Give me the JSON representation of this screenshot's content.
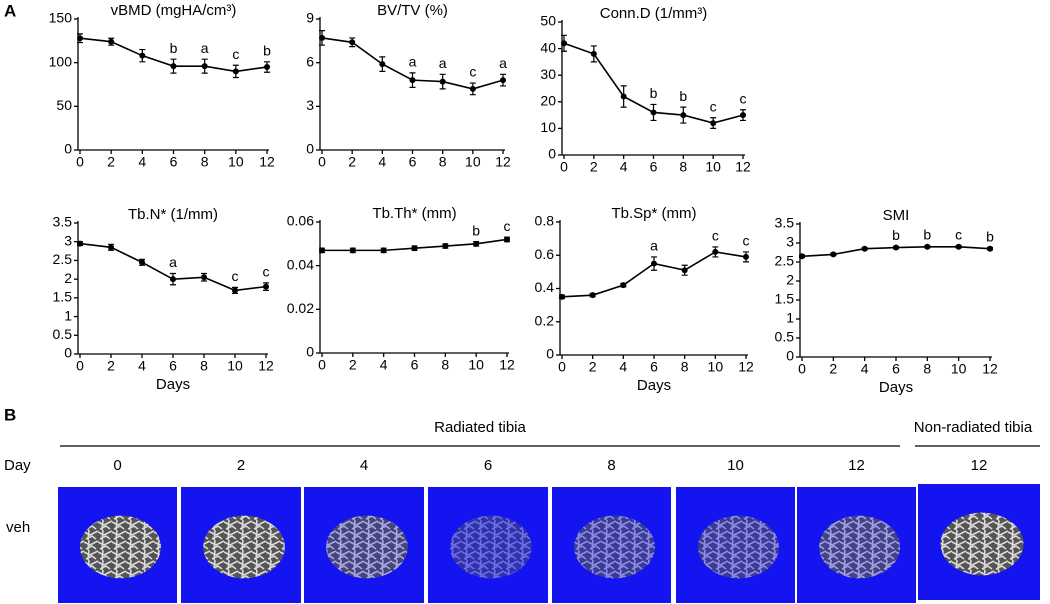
{
  "panel_labels": [
    "A",
    "B"
  ],
  "chart_data": [
    {
      "type": "line",
      "title": "vBMD (mgHA/cm³)",
      "x": [
        0,
        2,
        4,
        6,
        8,
        10,
        12
      ],
      "xlim": [
        0,
        12
      ],
      "xticks": [
        0,
        2,
        4,
        6,
        8,
        10,
        12
      ],
      "ylim": [
        0,
        150
      ],
      "yticks": [
        0,
        50,
        100,
        150
      ],
      "series": [
        {
          "color": "#000000",
          "values": [
            128,
            124,
            108,
            96,
            96,
            90,
            95
          ],
          "errors": [
            5,
            4,
            7,
            8,
            8,
            7,
            6
          ],
          "annotations": [
            null,
            null,
            null,
            "b",
            "a",
            "c",
            "b"
          ]
        }
      ]
    },
    {
      "type": "line",
      "title": "BV/TV (%)",
      "x": [
        0,
        2,
        4,
        6,
        8,
        10,
        12
      ],
      "xlim": [
        0,
        12
      ],
      "xticks": [
        0,
        2,
        4,
        6,
        8,
        10,
        12
      ],
      "ylim": [
        0,
        9
      ],
      "yticks": [
        0,
        3,
        6,
        9
      ],
      "series": [
        {
          "color": "#000000",
          "values": [
            7.7,
            7.4,
            5.9,
            4.8,
            4.7,
            4.2,
            4.8
          ],
          "errors": [
            0.5,
            0.3,
            0.5,
            0.5,
            0.5,
            0.4,
            0.4
          ],
          "annotations": [
            null,
            null,
            null,
            "a",
            "a",
            "c",
            "a"
          ]
        }
      ]
    },
    {
      "type": "line",
      "title": "Conn.D (1/mm³)",
      "x": [
        0,
        2,
        4,
        6,
        8,
        10,
        12
      ],
      "xlim": [
        0,
        12
      ],
      "xticks": [
        0,
        2,
        4,
        6,
        8,
        10,
        12
      ],
      "ylim": [
        0,
        50
      ],
      "yticks": [
        0,
        10,
        20,
        30,
        40,
        50
      ],
      "series": [
        {
          "color": "#000000",
          "values": [
            42,
            38,
            22,
            16,
            15,
            12,
            15
          ],
          "errors": [
            3,
            3,
            4,
            3,
            3,
            2,
            2
          ],
          "annotations": [
            null,
            null,
            null,
            "b",
            "b",
            "c",
            "c"
          ]
        }
      ]
    },
    {
      "type": "line",
      "title": "Tb.N* (1/mm)",
      "x_label": "Days",
      "x": [
        0,
        2,
        4,
        6,
        8,
        10,
        12
      ],
      "xlim": [
        0,
        12
      ],
      "xticks": [
        0,
        2,
        4,
        6,
        8,
        10,
        12
      ],
      "ylim": [
        0,
        3.5
      ],
      "yticks": [
        0,
        0.5,
        1,
        1.5,
        2,
        2.5,
        3,
        3.5
      ],
      "series": [
        {
          "color": "#000000",
          "values": [
            2.95,
            2.85,
            2.45,
            2.0,
            2.05,
            1.7,
            1.8
          ],
          "errors": [
            0.05,
            0.08,
            0.08,
            0.15,
            0.1,
            0.08,
            0.1
          ],
          "annotations": [
            null,
            null,
            null,
            "a",
            null,
            "c",
            "c"
          ]
        }
      ]
    },
    {
      "type": "line",
      "title": "Tb.Th* (mm)",
      "x": [
        0,
        2,
        4,
        6,
        8,
        10,
        12
      ],
      "xlim": [
        0,
        12
      ],
      "xticks": [
        0,
        2,
        4,
        6,
        8,
        10,
        12
      ],
      "ylim": [
        0,
        0.06
      ],
      "yticks": [
        0,
        0.02,
        0.04,
        0.06
      ],
      "series": [
        {
          "color": "#000000",
          "values": [
            0.047,
            0.047,
            0.047,
            0.048,
            0.049,
            0.05,
            0.052
          ],
          "errors": [
            0.001,
            0.001,
            0.001,
            0.001,
            0.001,
            0.001,
            0.001
          ],
          "annotations": [
            null,
            null,
            null,
            null,
            null,
            "b",
            "c"
          ]
        }
      ]
    },
    {
      "type": "line",
      "title": "Tb.Sp* (mm)",
      "x_label": "Days",
      "x": [
        0,
        2,
        4,
        6,
        8,
        10,
        12
      ],
      "xlim": [
        0,
        12
      ],
      "xticks": [
        0,
        2,
        4,
        6,
        8,
        10,
        12
      ],
      "ylim": [
        0,
        0.8
      ],
      "yticks": [
        0,
        0.2,
        0.4,
        0.6,
        0.8
      ],
      "series": [
        {
          "color": "#000000",
          "values": [
            0.35,
            0.36,
            0.42,
            0.55,
            0.51,
            0.62,
            0.59
          ],
          "errors": [
            0.01,
            0.01,
            0.01,
            0.04,
            0.03,
            0.03,
            0.03
          ],
          "annotations": [
            null,
            null,
            null,
            "a",
            null,
            "c",
            "c"
          ]
        }
      ]
    },
    {
      "type": "line",
      "title": "SMI",
      "x_label": "Days",
      "x": [
        0,
        2,
        4,
        6,
        8,
        10,
        12
      ],
      "xlim": [
        0,
        12
      ],
      "xticks": [
        0,
        2,
        4,
        6,
        8,
        10,
        12
      ],
      "ylim": [
        0,
        3.5
      ],
      "yticks": [
        0,
        0.5,
        1,
        1.5,
        2,
        2.5,
        3,
        3.5
      ],
      "series": [
        {
          "color": "#000000",
          "values": [
            2.65,
            2.7,
            2.85,
            2.88,
            2.9,
            2.9,
            2.85
          ],
          "errors": [
            0.03,
            0.03,
            0.03,
            0.03,
            0.03,
            0.03,
            0.03
          ],
          "annotations": [
            null,
            null,
            null,
            "b",
            "b",
            "c",
            "b"
          ]
        }
      ]
    }
  ],
  "panel_b": {
    "group_labels": [
      "Radiated tibia",
      "Non-radiated tibia"
    ],
    "row_header": "Day",
    "columns": [
      "0",
      "2",
      "4",
      "6",
      "8",
      "10",
      "12",
      "12"
    ],
    "rows": [
      "veh"
    ]
  }
}
